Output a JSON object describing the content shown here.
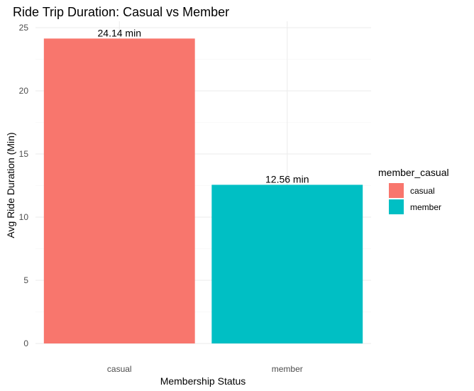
{
  "chart_data": {
    "type": "bar",
    "title": "Ride Trip Duration: Casual vs Member",
    "xlabel": "Membership Status",
    "ylabel": "Avg Ride Duration (Min)",
    "categories": [
      "casual",
      "member"
    ],
    "values": [
      24.14,
      12.56
    ],
    "data_labels": [
      "24.14 min",
      "12.56 min"
    ],
    "ylim": [
      0,
      25
    ],
    "y_ticks": [
      0,
      5,
      10,
      15,
      20,
      25
    ],
    "grid": true,
    "legend": {
      "title": "member_casual",
      "position": "right",
      "entries": [
        {
          "label": "casual",
          "color": "#F8766D"
        },
        {
          "label": "member",
          "color": "#00BFC4"
        }
      ]
    },
    "colors": [
      "#F8766D",
      "#00BFC4"
    ]
  }
}
